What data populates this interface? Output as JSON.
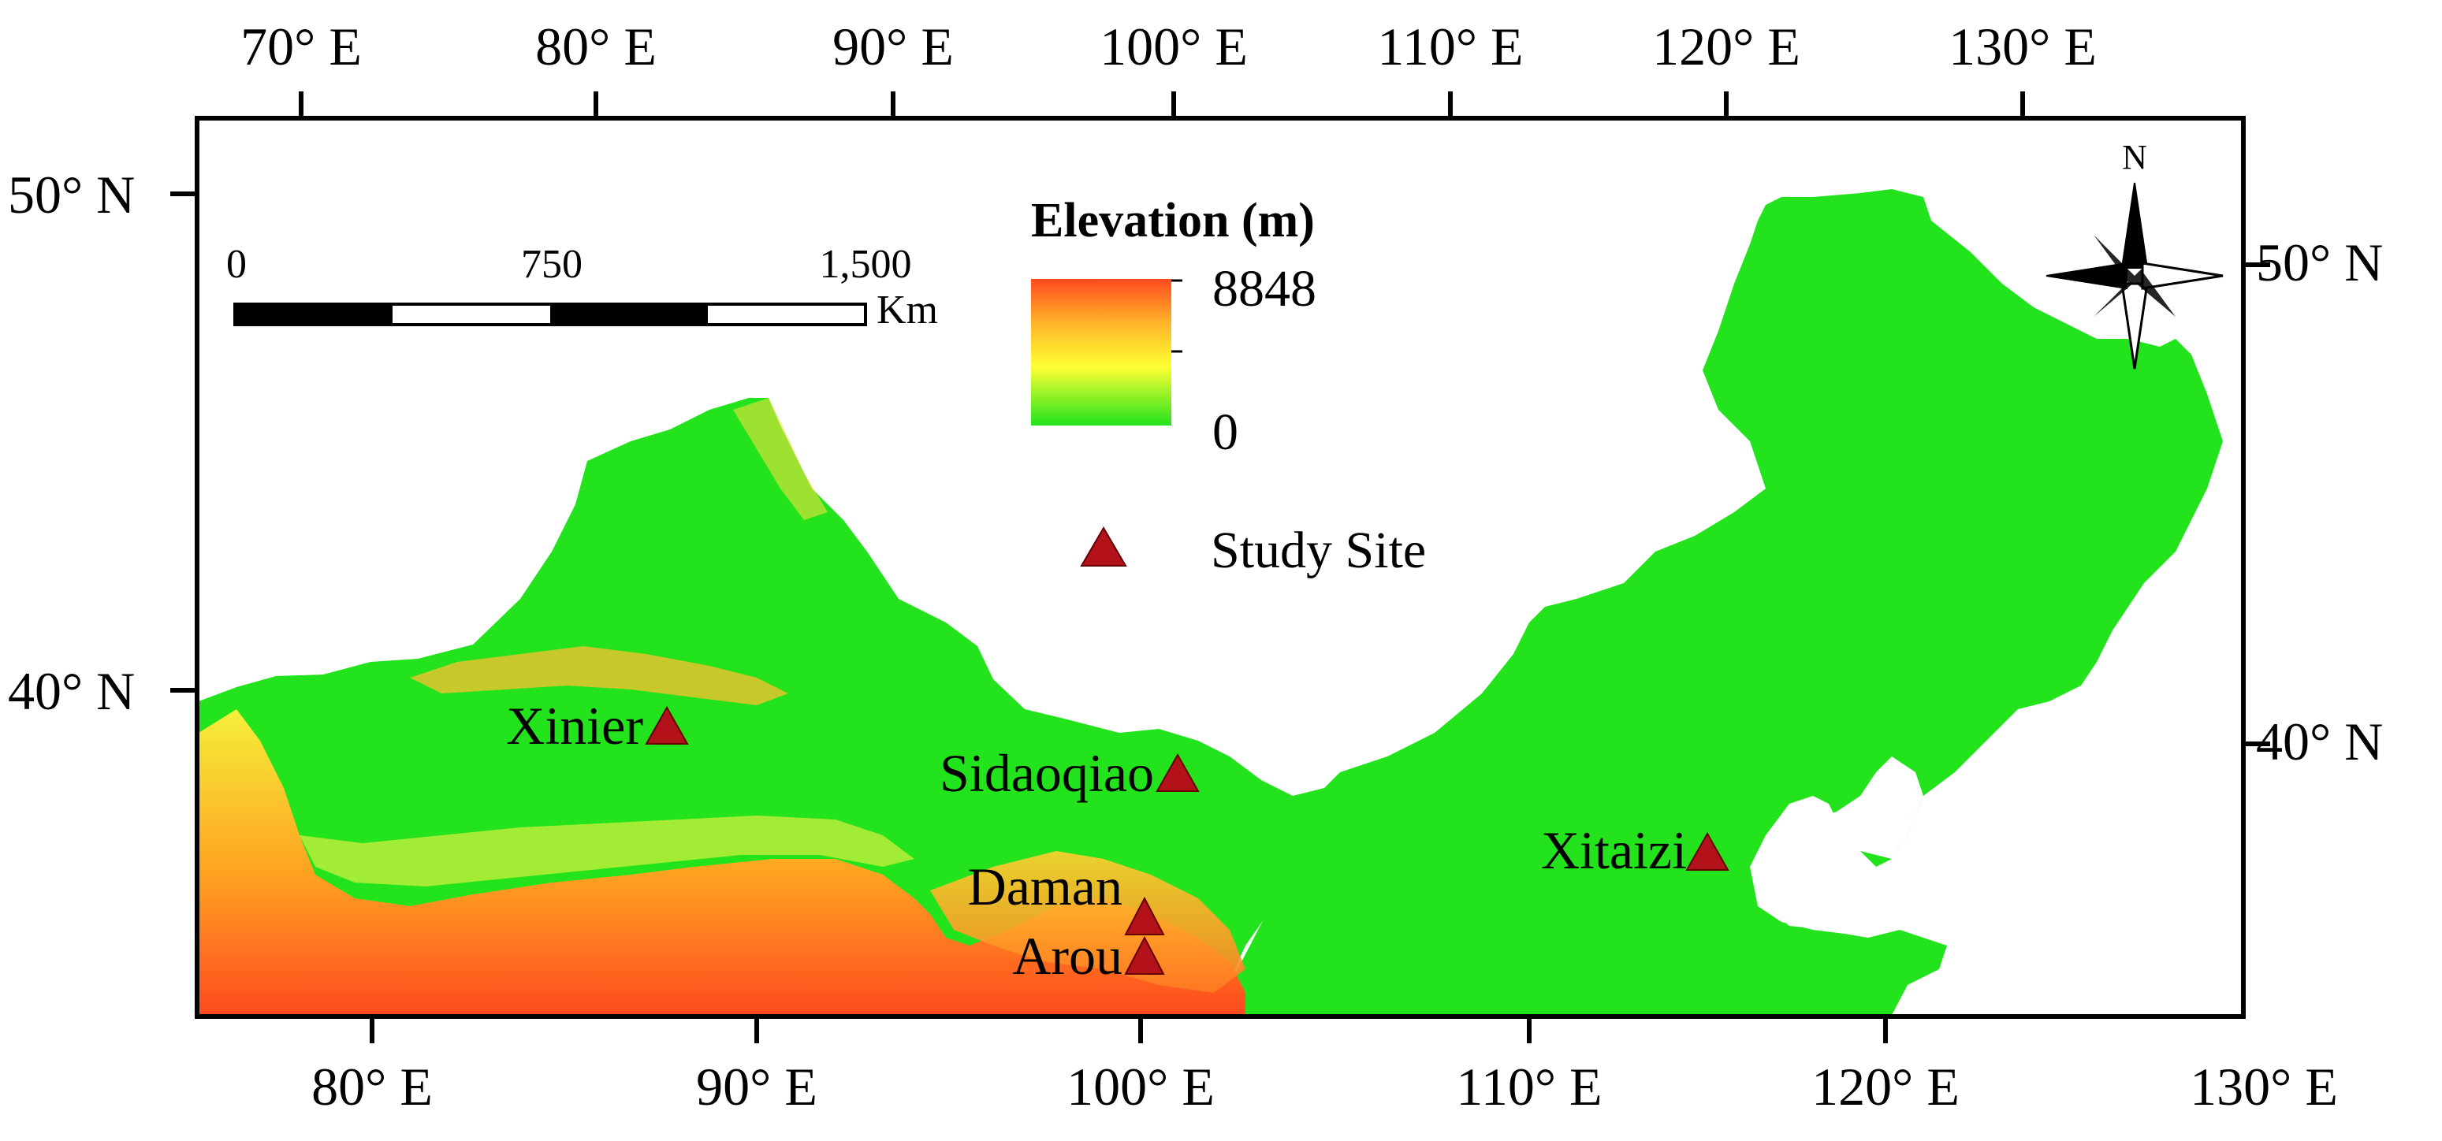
{
  "top_axis": {
    "labels": [
      "70° E",
      "80° E",
      "90° E",
      "100° E",
      "110° E",
      "120° E",
      "130° E"
    ]
  },
  "bottom_axis": {
    "labels": [
      "80° E",
      "90° E",
      "100° E",
      "110° E",
      "120° E",
      "130° E"
    ]
  },
  "left_axis": {
    "labels": [
      "50° N",
      "40° N"
    ]
  },
  "right_axis": {
    "labels": [
      "50° N",
      "40° N"
    ]
  },
  "legend": {
    "title": "Elevation (m)",
    "max_label": "8848",
    "min_label": "0",
    "site_label": "Study Site",
    "colors": {
      "high": "#ff4a1f",
      "mid_high": "#ffb429",
      "mid": "#ffff33",
      "low": "#22e31c",
      "site": "#b3121a"
    }
  },
  "scale_bar": {
    "ticks": [
      "0",
      "750",
      "1,500"
    ],
    "unit": "Km"
  },
  "north_arrow": {
    "label": "N"
  },
  "sites": [
    {
      "id": "xinier",
      "name": "Xinier"
    },
    {
      "id": "sidaoqiao",
      "name": "Sidaoqiao"
    },
    {
      "id": "daman",
      "name": "Daman"
    },
    {
      "id": "arou",
      "name": "Arou"
    },
    {
      "id": "xitaizi",
      "name": "Xitaizi"
    }
  ]
}
